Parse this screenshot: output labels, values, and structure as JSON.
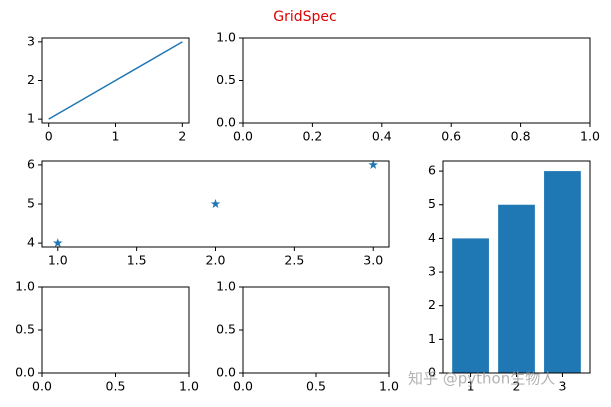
{
  "title": "GridSpec",
  "watermark": "知乎 @python生物人",
  "chart_data": [
    {
      "type": "line",
      "series": [
        {
          "color": "#1f77b4",
          "x": [
            0,
            1,
            2
          ],
          "values": [
            1,
            2,
            3
          ]
        }
      ],
      "xlim": [
        -0.1,
        2.1
      ],
      "ylim": [
        0.9,
        3.1
      ],
      "xticks": [
        0,
        1,
        2
      ],
      "yticks": [
        1,
        2,
        3
      ]
    },
    {
      "type": "empty",
      "xlim": [
        0,
        1
      ],
      "ylim": [
        0,
        1
      ],
      "xticks": [
        {
          "value": 0,
          "label": "0.0"
        },
        0.2,
        0.4,
        0.6,
        0.8,
        {
          "value": 1,
          "label": "1.0"
        }
      ],
      "yticks": [
        {
          "value": 0,
          "label": "0.0"
        },
        0.5,
        {
          "value": 1,
          "label": "1.0"
        }
      ]
    },
    {
      "type": "scatter",
      "series": [
        {
          "color": "#1f77b4",
          "x": [
            1,
            2,
            3
          ],
          "values": [
            4,
            5,
            6
          ]
        }
      ],
      "xlim": [
        0.9,
        3.1
      ],
      "ylim": [
        3.9,
        6.1
      ],
      "xticks": [
        {
          "value": 1,
          "label": "1.0"
        },
        1.5,
        {
          "value": 2,
          "label": "2.0"
        },
        2.5,
        {
          "value": 3,
          "label": "3.0"
        }
      ],
      "yticks": [
        4,
        5,
        6
      ]
    },
    {
      "type": "empty",
      "xlim": [
        0,
        1
      ],
      "ylim": [
        0,
        1
      ],
      "xticks": [
        {
          "value": 0,
          "label": "0.0"
        },
        0.5,
        {
          "value": 1,
          "label": "1.0"
        }
      ],
      "yticks": [
        {
          "value": 0,
          "label": "0.0"
        },
        0.5,
        {
          "value": 1,
          "label": "1.0"
        }
      ]
    },
    {
      "type": "empty",
      "xlim": [
        0,
        1
      ],
      "ylim": [
        0,
        1
      ],
      "xticks": [
        {
          "value": 0,
          "label": "0.0"
        },
        0.5,
        {
          "value": 1,
          "label": "1.0"
        }
      ],
      "yticks": [
        {
          "value": 0,
          "label": "0.0"
        },
        0.5,
        {
          "value": 1,
          "label": "1.0"
        }
      ]
    },
    {
      "type": "bar",
      "series": [
        {
          "color": "#1f77b4",
          "x": [
            1,
            2,
            3
          ],
          "values": [
            4,
            5,
            6
          ]
        }
      ],
      "bar_width": 0.8,
      "xlim": [
        0.4,
        3.6
      ],
      "ylim": [
        0,
        6.3
      ],
      "xticks": [
        1,
        2,
        3
      ],
      "yticks": [
        0,
        1,
        2,
        3,
        4,
        5,
        6
      ]
    }
  ]
}
